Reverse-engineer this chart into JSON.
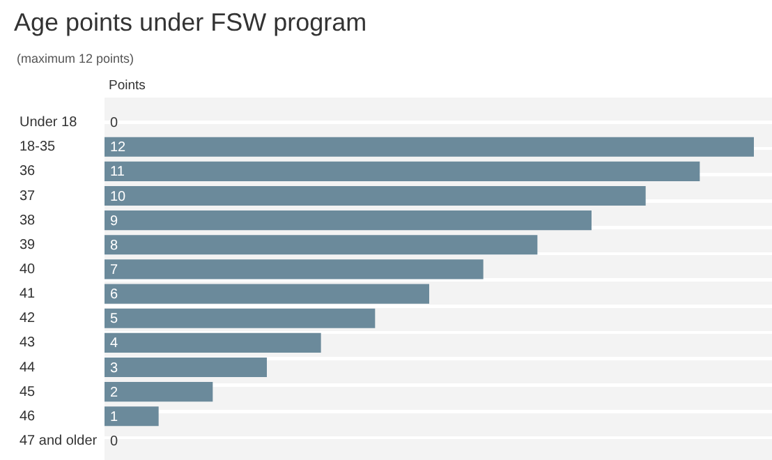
{
  "chart_data": {
    "type": "bar",
    "orientation": "horizontal",
    "title": "Age points under FSW program",
    "subtitle": "(maximum 12 points)",
    "xlabel": "Points",
    "categories": [
      "Under 18",
      "18-35",
      "36",
      "37",
      "38",
      "39",
      "40",
      "41",
      "42",
      "43",
      "44",
      "45",
      "46",
      "47 and older"
    ],
    "values": [
      0,
      12,
      11,
      10,
      9,
      8,
      7,
      6,
      5,
      4,
      3,
      2,
      1,
      0
    ],
    "color": "#6b8a9b",
    "data_labels": true,
    "grid": false,
    "legend": false
  }
}
